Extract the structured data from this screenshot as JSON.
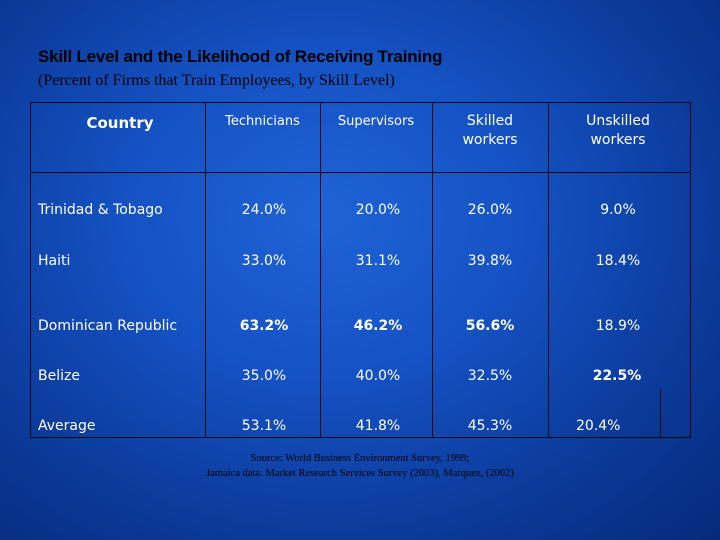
{
  "title": "Skill Level and the Likelihood of Receiving Training",
  "subtitle": "(Percent of Firms that Train Employees, by Skill Level)",
  "table": {
    "headers": {
      "country": "Country",
      "technicians": "Technicians",
      "supervisors": "Supervisors",
      "skilled_line1": "Skilled",
      "skilled_line2": "workers",
      "unskilled_line1": "Unskilled",
      "unskilled_line2": "workers"
    },
    "rows": [
      {
        "country": "Trinidad & Tobago",
        "technicians": "24.0%",
        "supervisors": "20.0%",
        "skilled": "26.0%",
        "unskilled": "9.0%"
      },
      {
        "country": "Haiti",
        "technicians": "33.0%",
        "supervisors": "31.1%",
        "skilled": "39.8%",
        "unskilled": "18.4%"
      },
      {
        "country": "Dominican Republic",
        "technicians": "63.2%",
        "supervisors": "46.2%",
        "skilled": "56.6%",
        "unskilled": "18.9%"
      },
      {
        "country": "Belize",
        "technicians": "35.0%",
        "supervisors": "40.0%",
        "skilled": "32.5%",
        "unskilled": "22.5%"
      },
      {
        "country": "Average",
        "technicians": "53.1%",
        "supervisors": "41.8%",
        "skilled": "45.3%",
        "unskilled": "20.4%"
      }
    ]
  },
  "source": {
    "line1": "Source: World Business Environment Survey, 1999;",
    "line2": "Jamaica data: Market Research Services Survey (2003), Marquez, (2002)"
  }
}
